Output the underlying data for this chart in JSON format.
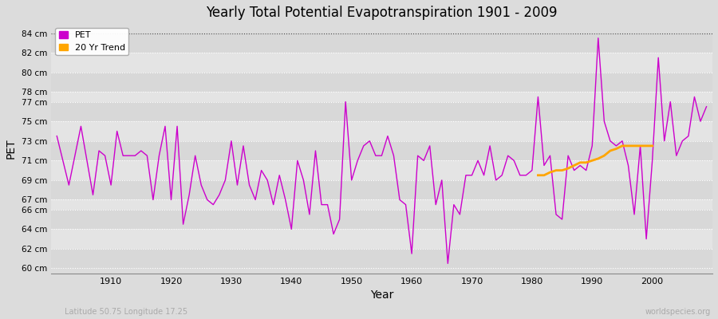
{
  "title": "Yearly Total Potential Evapotranspiration 1901 - 2009",
  "xlabel": "Year",
  "ylabel": "PET",
  "subtitle_left": "Latitude 50.75 Longitude 17.25",
  "subtitle_right": "worldspecies.org",
  "pet_color": "#CC00CC",
  "trend_color": "#FFA500",
  "bg_color": "#DCDCDC",
  "plot_bg_color": "#DCDCDC",
  "ylim": [
    59.5,
    85.0
  ],
  "ytick_vals": [
    60,
    62,
    64,
    66,
    67,
    69,
    71,
    73,
    75,
    77,
    78,
    80,
    82,
    84
  ],
  "xlim": [
    1900,
    2010
  ],
  "xticks": [
    1910,
    1920,
    1930,
    1940,
    1950,
    1960,
    1970,
    1980,
    1990,
    2000
  ],
  "years": [
    1901,
    1902,
    1903,
    1904,
    1905,
    1906,
    1907,
    1908,
    1909,
    1910,
    1911,
    1912,
    1913,
    1914,
    1915,
    1916,
    1917,
    1918,
    1919,
    1920,
    1921,
    1922,
    1923,
    1924,
    1925,
    1926,
    1927,
    1928,
    1929,
    1930,
    1931,
    1932,
    1933,
    1934,
    1935,
    1936,
    1937,
    1938,
    1939,
    1940,
    1941,
    1942,
    1943,
    1944,
    1945,
    1946,
    1947,
    1948,
    1949,
    1950,
    1951,
    1952,
    1953,
    1954,
    1955,
    1956,
    1957,
    1958,
    1959,
    1960,
    1961,
    1962,
    1963,
    1964,
    1965,
    1966,
    1967,
    1968,
    1969,
    1970,
    1971,
    1972,
    1973,
    1974,
    1975,
    1976,
    1977,
    1978,
    1979,
    1980,
    1981,
    1982,
    1983,
    1984,
    1985,
    1986,
    1987,
    1988,
    1989,
    1990,
    1991,
    1992,
    1993,
    1994,
    1995,
    1996,
    1997,
    1998,
    1999,
    2000,
    2001,
    2002,
    2003,
    2004,
    2005,
    2006,
    2007,
    2008,
    2009
  ],
  "pet_values": [
    73.5,
    71.0,
    68.5,
    71.5,
    74.5,
    71.0,
    67.5,
    72.0,
    71.5,
    68.5,
    74.0,
    71.5,
    71.5,
    71.5,
    72.0,
    71.5,
    67.0,
    71.5,
    74.5,
    67.0,
    74.5,
    64.5,
    67.5,
    71.5,
    68.5,
    67.0,
    66.5,
    67.5,
    69.0,
    73.0,
    68.5,
    72.5,
    68.5,
    67.0,
    70.0,
    69.0,
    66.5,
    69.5,
    67.0,
    64.0,
    71.0,
    69.0,
    65.5,
    72.0,
    66.5,
    66.5,
    63.5,
    65.0,
    77.0,
    69.0,
    71.0,
    72.5,
    73.0,
    71.5,
    71.5,
    73.5,
    71.5,
    67.0,
    66.5,
    61.5,
    71.5,
    71.0,
    72.5,
    66.5,
    69.0,
    60.5,
    66.5,
    65.5,
    69.5,
    69.5,
    71.0,
    69.5,
    72.5,
    69.0,
    69.5,
    71.5,
    71.0,
    69.5,
    69.5,
    70.0,
    77.5,
    70.5,
    71.5,
    65.5,
    65.0,
    71.5,
    70.0,
    70.5,
    70.0,
    72.5,
    83.5,
    75.0,
    73.0,
    72.5,
    73.0,
    70.5,
    65.5,
    72.5,
    63.0,
    71.0,
    81.5,
    73.0,
    77.0,
    71.5,
    73.0,
    73.5,
    77.5,
    75.0,
    76.5
  ],
  "trend_years": [
    1981,
    1982,
    1983,
    1984,
    1985,
    1986,
    1987,
    1988,
    1989,
    1990,
    1991,
    1992,
    1993,
    1994,
    1995,
    1996,
    1997,
    1998,
    1999,
    2000
  ],
  "trend_values": [
    69.5,
    69.5,
    69.8,
    70.0,
    70.0,
    70.2,
    70.5,
    70.8,
    70.8,
    71.0,
    71.2,
    71.5,
    72.0,
    72.2,
    72.5,
    72.5,
    72.5,
    72.5,
    72.5,
    72.5
  ],
  "band_colors": [
    "#D8D8D8",
    "#E4E4E4"
  ]
}
